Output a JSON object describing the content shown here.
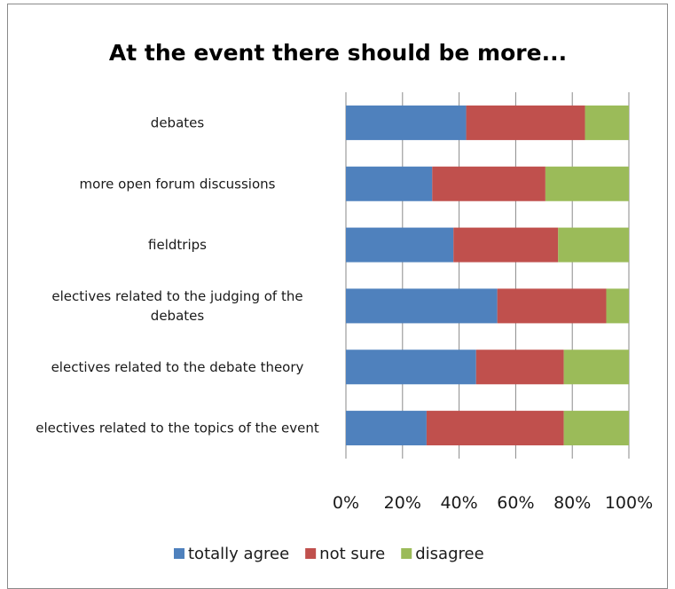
{
  "chart_data": {
    "type": "bar",
    "orientation": "horizontal",
    "stacking": "percent",
    "title": "At the event there should be more...",
    "categories": [
      "debates",
      "more open forum discussions",
      "fieldtrips",
      "electives related to the judging of the debates",
      "electives related to the debate theory",
      "electives related to the topics of the event"
    ],
    "series": [
      {
        "name": "totally agree",
        "color": "#4F81BD",
        "values": [
          42.5,
          30.5,
          38,
          53.5,
          46,
          28.5
        ]
      },
      {
        "name": "not sure",
        "color": "#C0504D",
        "values": [
          42,
          40,
          37,
          38.5,
          31,
          48.5
        ]
      },
      {
        "name": "disagree",
        "color": "#9BBB59",
        "values": [
          15.5,
          29.5,
          25,
          8,
          23,
          23
        ]
      }
    ],
    "xticks": [
      "0%",
      "20%",
      "40%",
      "60%",
      "80%",
      "100%"
    ],
    "xlim": [
      0,
      100
    ],
    "xlabel": "",
    "ylabel": "",
    "grid": true,
    "legend_position": "bottom"
  }
}
